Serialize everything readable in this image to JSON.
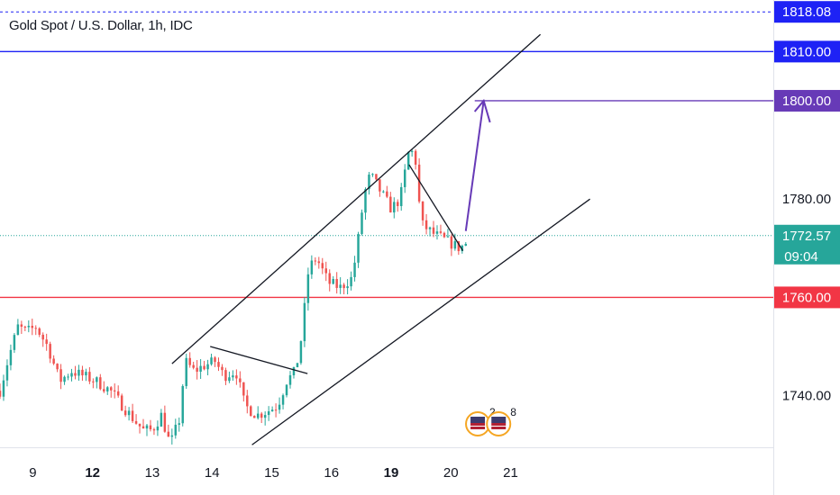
{
  "header": {
    "title": "Gold Spot / U.S. Dollar, 1h, IDC"
  },
  "chart_data": {
    "type": "candlestick",
    "colors": {
      "up": "#26a69a",
      "down": "#ef5350",
      "channel": "#131722",
      "target": "#673ab7",
      "support": "#f23645",
      "resistance": "#1e22f5",
      "current": "#26a69a"
    },
    "y_axis": {
      "range": [
        1729.5,
        1820.5
      ],
      "ticks": [
        "1740.00",
        "1760.00",
        "1780.00"
      ]
    },
    "x_axis": {
      "range": [
        8.45,
        21.4
      ],
      "ticks": [
        {
          "x": 9,
          "label": "9",
          "bold": false
        },
        {
          "x": 10,
          "label": "12",
          "bold": true
        },
        {
          "x": 11,
          "label": "13",
          "bold": false
        },
        {
          "x": 12,
          "label": "14",
          "bold": false
        },
        {
          "x": 13,
          "label": "15",
          "bold": false
        },
        {
          "x": 14,
          "label": "16",
          "bold": false
        },
        {
          "x": 15,
          "label": "19",
          "bold": true
        },
        {
          "x": 16,
          "label": "20",
          "bold": false
        },
        {
          "x": 17,
          "label": "21",
          "bold": false
        }
      ]
    },
    "price_labels": [
      {
        "value": 1818.08,
        "text": "1818.08",
        "color": "#1e22f5",
        "style": "dashed"
      },
      {
        "value": 1810.0,
        "text": "1810.00",
        "color": "#1e22f5",
        "style": "solid"
      },
      {
        "value": 1800.0,
        "text": "1800.00",
        "color": "#673ab7",
        "style": "segment"
      },
      {
        "value": 1772.57,
        "text": "1772.57",
        "sub": "09:04",
        "color": "#26a69a",
        "style": "dotted"
      },
      {
        "value": 1760.0,
        "text": "1760.00",
        "color": "#f23645",
        "style": "solid"
      }
    ],
    "anchors": [
      [
        8.45,
        1741
      ],
      [
        8.6,
        1748
      ],
      [
        8.75,
        1754
      ],
      [
        8.9,
        1753
      ],
      [
        9.05,
        1754
      ],
      [
        9.25,
        1750
      ],
      [
        9.45,
        1743
      ],
      [
        9.65,
        1745
      ],
      [
        9.85,
        1744
      ],
      [
        10.05,
        1743
      ],
      [
        10.3,
        1741
      ],
      [
        10.5,
        1738
      ],
      [
        10.7,
        1735
      ],
      [
        10.85,
        1733
      ],
      [
        11.0,
        1733
      ],
      [
        11.15,
        1736
      ],
      [
        11.3,
        1730
      ],
      [
        11.45,
        1735
      ],
      [
        11.55,
        1747
      ],
      [
        11.7,
        1745
      ],
      [
        11.85,
        1746
      ],
      [
        12.05,
        1747
      ],
      [
        12.2,
        1744
      ],
      [
        12.4,
        1745
      ],
      [
        12.55,
        1738
      ],
      [
        12.75,
        1736
      ],
      [
        12.95,
        1737
      ],
      [
        13.1,
        1738
      ],
      [
        13.25,
        1743
      ],
      [
        13.4,
        1745
      ],
      [
        13.5,
        1752
      ],
      [
        13.62,
        1766
      ],
      [
        13.75,
        1768
      ],
      [
        13.95,
        1763
      ],
      [
        14.15,
        1762
      ],
      [
        14.35,
        1764
      ],
      [
        14.45,
        1772
      ],
      [
        14.55,
        1781
      ],
      [
        14.65,
        1785
      ],
      [
        14.8,
        1782
      ],
      [
        15.0,
        1778
      ],
      [
        15.15,
        1780
      ],
      [
        15.3,
        1790
      ],
      [
        15.4,
        1789
      ],
      [
        15.5,
        1775
      ],
      [
        15.7,
        1773
      ],
      [
        15.85,
        1772
      ],
      [
        16.0,
        1771
      ],
      [
        16.15,
        1770
      ],
      [
        16.28,
        1771.2
      ]
    ],
    "drawings": [
      {
        "name": "channel-upper-line",
        "from": [
          11.33,
          1746.5
        ],
        "to": [
          17.5,
          1813.5
        ]
      },
      {
        "name": "channel-lower-line",
        "from": [
          12.67,
          1730
        ],
        "to": [
          18.33,
          1780
        ]
      },
      {
        "name": "flag-top-line",
        "from": [
          11.97,
          1750
        ],
        "to": [
          13.6,
          1744.5
        ]
      },
      {
        "name": "falling-wedge-line",
        "from": [
          15.3,
          1787
        ],
        "to": [
          16.2,
          1769.5
        ]
      },
      {
        "name": "target-arrow",
        "from": [
          16.25,
          1773.5
        ],
        "to": [
          16.55,
          1800
        ]
      }
    ],
    "badges": [
      {
        "name": "us-flag-badge-1",
        "count": "2",
        "x": 16.45
      },
      {
        "name": "us-flag-badge-2",
        "count": "8",
        "x": 16.8
      }
    ]
  }
}
